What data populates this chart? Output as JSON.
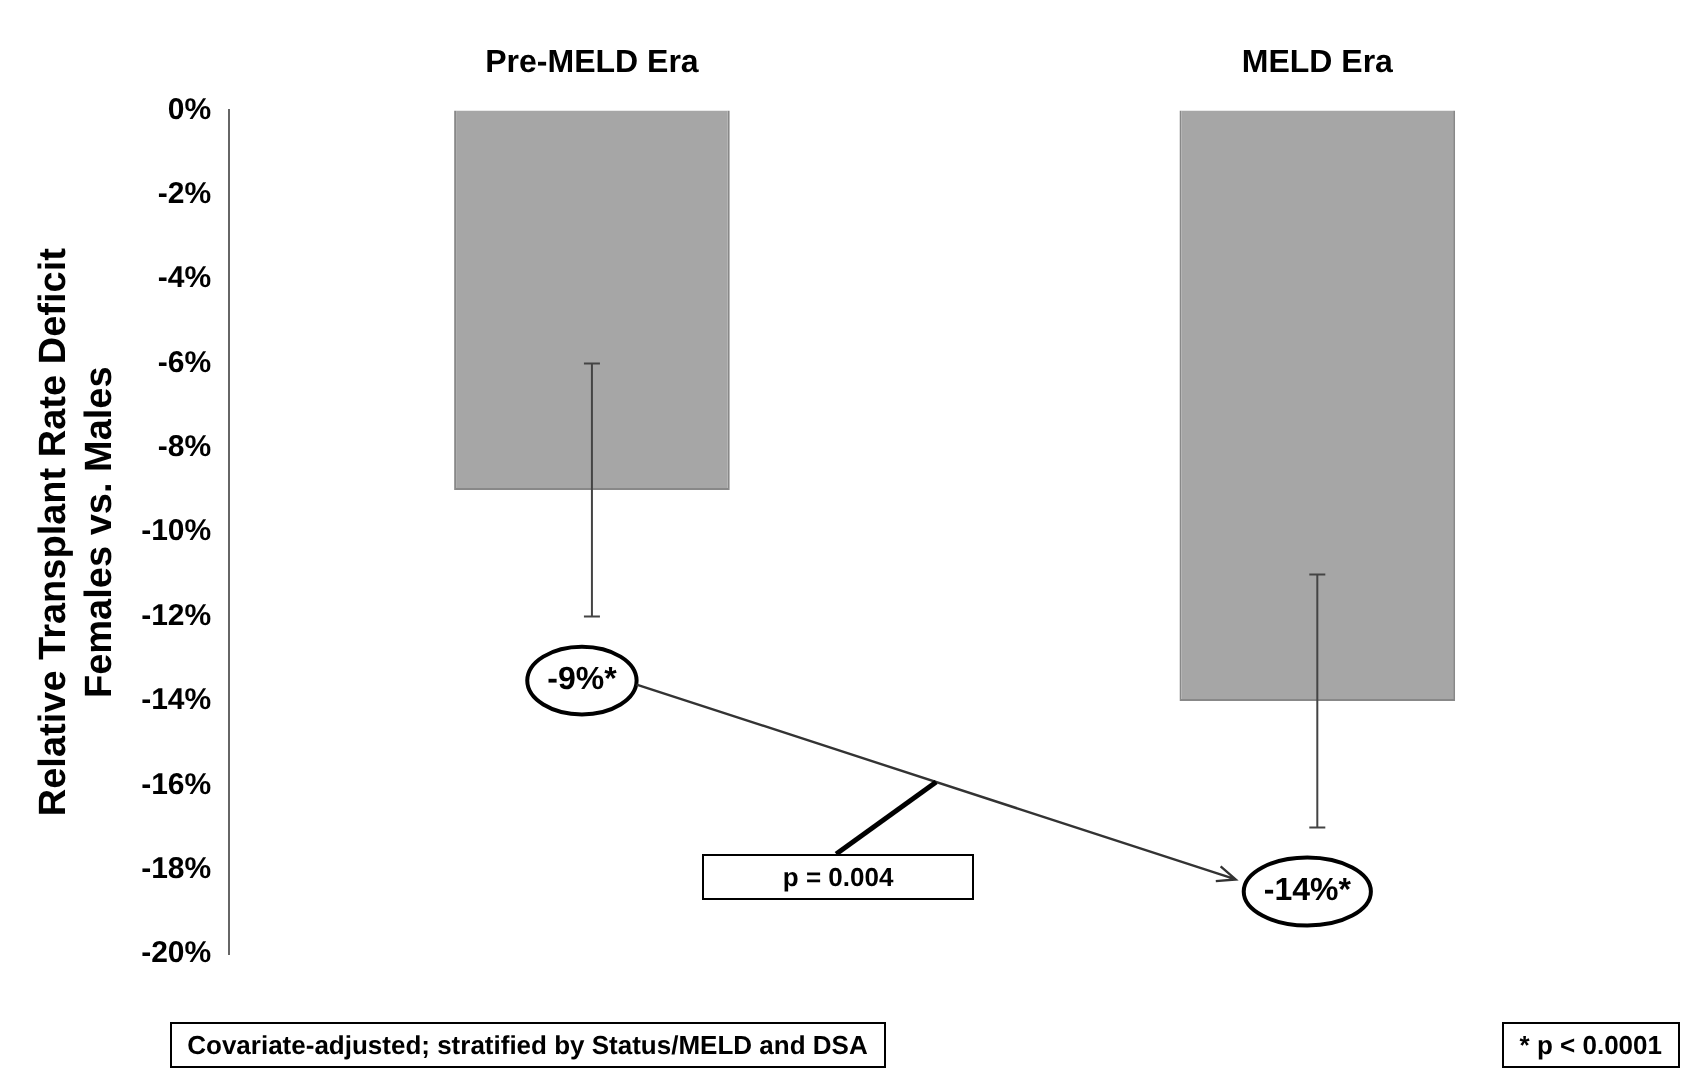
{
  "chart_data": {
    "type": "bar",
    "categories": [
      "Pre-MELD Era",
      "MELD Era"
    ],
    "values": [
      -9,
      -14
    ],
    "color": "#a6a6a6",
    "errors": [
      3,
      3
    ],
    "ylabel": "Relative Transplant Rate Deficit\nFemales vs. Males",
    "ylim": [
      -20,
      0
    ],
    "yticks": [
      {
        "value": 0,
        "label": "0%"
      },
      {
        "value": -2,
        "label": "-2%"
      },
      {
        "value": -4,
        "label": "-4%"
      },
      {
        "value": -6,
        "label": "-6%"
      },
      {
        "value": -8,
        "label": "-8%"
      },
      {
        "value": -10,
        "label": "-10%"
      },
      {
        "value": -12,
        "label": "-12%"
      },
      {
        "value": -14,
        "label": "-14%"
      },
      {
        "value": -16,
        "label": "-16%"
      },
      {
        "value": -18,
        "label": "-18%"
      },
      {
        "value": -20,
        "label": "-20%"
      }
    ],
    "grid": false,
    "legend": false,
    "annotations": [
      "-9%*",
      "-14%*",
      "p = 0.004",
      "Covariate-adjusted; stratified by Status/MELD and DSA",
      "* p < 0.0001"
    ]
  }
}
